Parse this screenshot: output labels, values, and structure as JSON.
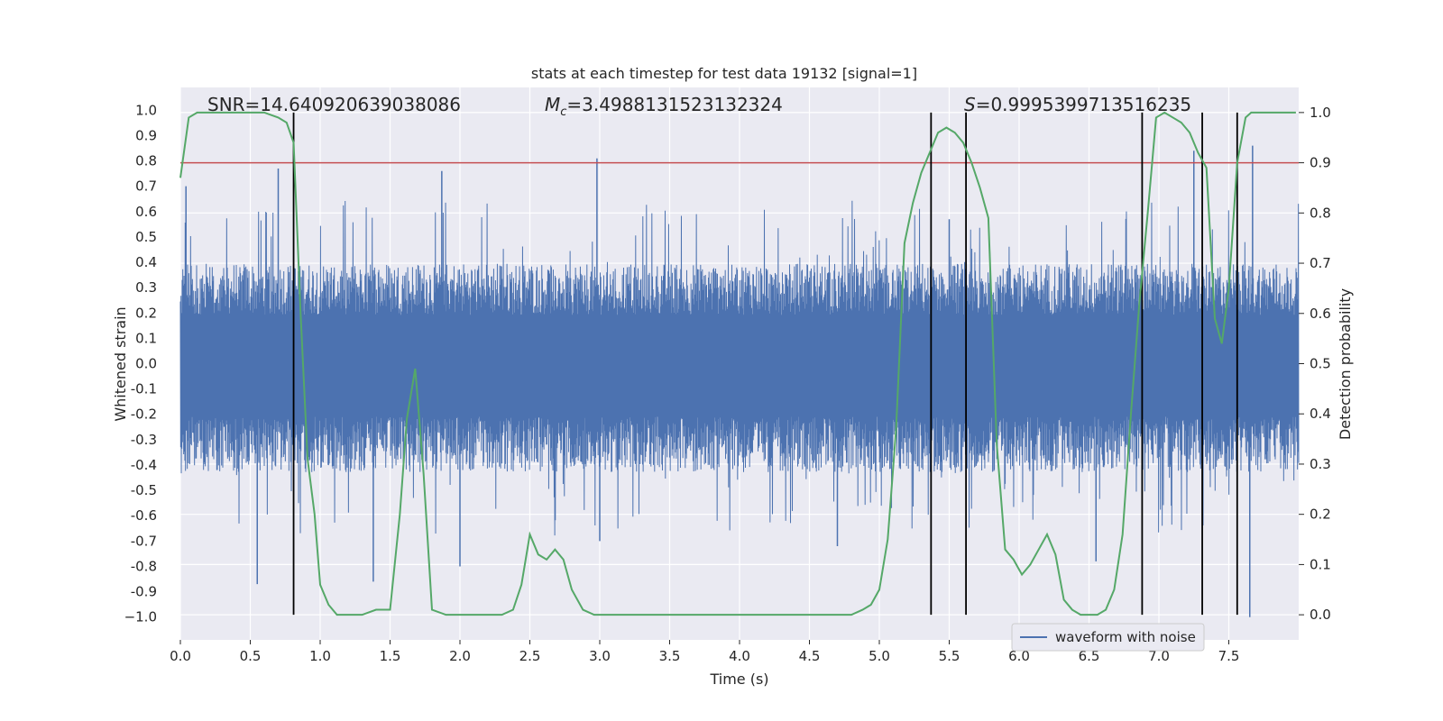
{
  "chart_data": {
    "type": "line",
    "title": "stats at each timestep for test data 19132 [signal=1]",
    "xlabel": "Time (s)",
    "ylabel": "Whitened strain",
    "y2label": "Detection probability",
    "xlim": [
      0.0,
      8.0
    ],
    "ylim": [
      -1.09,
      1.09
    ],
    "y2lim": [
      -0.05,
      1.05
    ],
    "x_ticks": [
      "0.0",
      "0.5",
      "1.0",
      "1.5",
      "2.0",
      "2.5",
      "3.0",
      "3.5",
      "4.0",
      "4.5",
      "5.0",
      "5.5",
      "6.0",
      "6.5",
      "7.0",
      "7.5"
    ],
    "y_ticks": [
      "1.0",
      "0.9",
      "0.8",
      "0.7",
      "0.6",
      "0.5",
      "0.4",
      "0.3",
      "0.2",
      "0.1",
      "0.0",
      "-0.1",
      "-0.2",
      "-0.3",
      "-0.4",
      "-0.5",
      "-0.6",
      "-0.7",
      "-0.8",
      "-0.9",
      "−1.0"
    ],
    "y2_ticks": [
      "1.0",
      "0.9",
      "0.8",
      "0.7",
      "0.6",
      "0.5",
      "0.4",
      "0.3",
      "0.2",
      "0.1",
      "0.0"
    ],
    "annotations": {
      "snr": "SNR=14.640920639038086",
      "mc_symbol": "M",
      "mc_sub": "c",
      "mc_value": "=3.4988131523132324",
      "s_symbol": "S",
      "s_value": "=0.9995399713516235"
    },
    "legend": {
      "label": "waveform with noise",
      "placement": "lower-right"
    },
    "grid": true,
    "threshold_line": {
      "y2": 0.9,
      "color": "#c44e52"
    },
    "vertical_lines": [
      0.81,
      5.37,
      5.62,
      6.88,
      7.31,
      7.56
    ],
    "waveform": {
      "name": "waveform with noise",
      "color": "#4c72b0",
      "t_range": [
        0.0,
        8.0
      ],
      "typical_upper": 0.35,
      "typical_lower": -0.38,
      "spikes": [
        [
          0.04,
          0.7
        ],
        [
          0.55,
          -0.87
        ],
        [
          0.7,
          0.77
        ],
        [
          1.38,
          -0.86
        ],
        [
          1.87,
          0.76
        ],
        [
          2.0,
          -0.8
        ],
        [
          2.98,
          0.81
        ],
        [
          3.0,
          -0.7
        ],
        [
          4.7,
          -0.72
        ],
        [
          5.5,
          0.57
        ],
        [
          6.55,
          -0.78
        ],
        [
          7.25,
          0.84
        ],
        [
          7.65,
          -1.0
        ],
        [
          7.67,
          0.86
        ]
      ]
    },
    "series": [
      {
        "name": "",
        "color": "#55a868",
        "x": [
          0.0,
          0.06,
          0.12,
          0.2,
          0.3,
          0.4,
          0.5,
          0.6,
          0.7,
          0.76,
          0.81,
          0.86,
          0.91,
          0.96,
          1.0,
          1.06,
          1.12,
          1.2,
          1.3,
          1.4,
          1.5,
          1.57,
          1.62,
          1.68,
          1.74,
          1.8,
          1.9,
          2.0,
          2.1,
          2.2,
          2.3,
          2.38,
          2.44,
          2.5,
          2.56,
          2.62,
          2.68,
          2.74,
          2.8,
          2.88,
          2.96,
          3.05,
          3.2,
          3.4,
          3.6,
          3.8,
          4.0,
          4.2,
          4.4,
          4.6,
          4.8,
          4.88,
          4.94,
          5.0,
          5.06,
          5.12,
          5.18,
          5.24,
          5.3,
          5.36,
          5.42,
          5.48,
          5.54,
          5.6,
          5.66,
          5.72,
          5.78,
          5.84,
          5.9,
          5.96,
          6.02,
          6.08,
          6.14,
          6.2,
          6.26,
          6.32,
          6.38,
          6.44,
          6.5,
          6.56,
          6.62,
          6.68,
          6.74,
          6.8,
          6.86,
          6.92,
          6.98,
          7.04,
          7.1,
          7.16,
          7.22,
          7.28,
          7.34,
          7.4,
          7.45,
          7.5,
          7.56,
          7.62,
          7.66,
          7.7,
          7.8,
          7.98
        ],
        "y": [
          0.87,
          0.99,
          1.0,
          1.0,
          1.0,
          1.0,
          1.0,
          1.0,
          0.99,
          0.98,
          0.94,
          0.6,
          0.31,
          0.2,
          0.06,
          0.02,
          0.0,
          0.0,
          0.0,
          0.01,
          0.01,
          0.2,
          0.39,
          0.49,
          0.28,
          0.01,
          0.0,
          0.0,
          0.0,
          0.0,
          0.0,
          0.01,
          0.06,
          0.16,
          0.12,
          0.11,
          0.13,
          0.11,
          0.05,
          0.01,
          0.0,
          0.0,
          0.0,
          0.0,
          0.0,
          0.0,
          0.0,
          0.0,
          0.0,
          0.0,
          0.0,
          0.01,
          0.02,
          0.05,
          0.15,
          0.37,
          0.74,
          0.82,
          0.88,
          0.92,
          0.96,
          0.97,
          0.96,
          0.94,
          0.9,
          0.85,
          0.79,
          0.34,
          0.13,
          0.11,
          0.08,
          0.1,
          0.13,
          0.16,
          0.12,
          0.03,
          0.01,
          0.0,
          0.0,
          0.0,
          0.01,
          0.05,
          0.16,
          0.4,
          0.62,
          0.8,
          0.99,
          1.0,
          0.99,
          0.98,
          0.96,
          0.92,
          0.89,
          0.59,
          0.54,
          0.65,
          0.9,
          0.99,
          1.0,
          1.0,
          1.0,
          1.0
        ]
      }
    ]
  }
}
